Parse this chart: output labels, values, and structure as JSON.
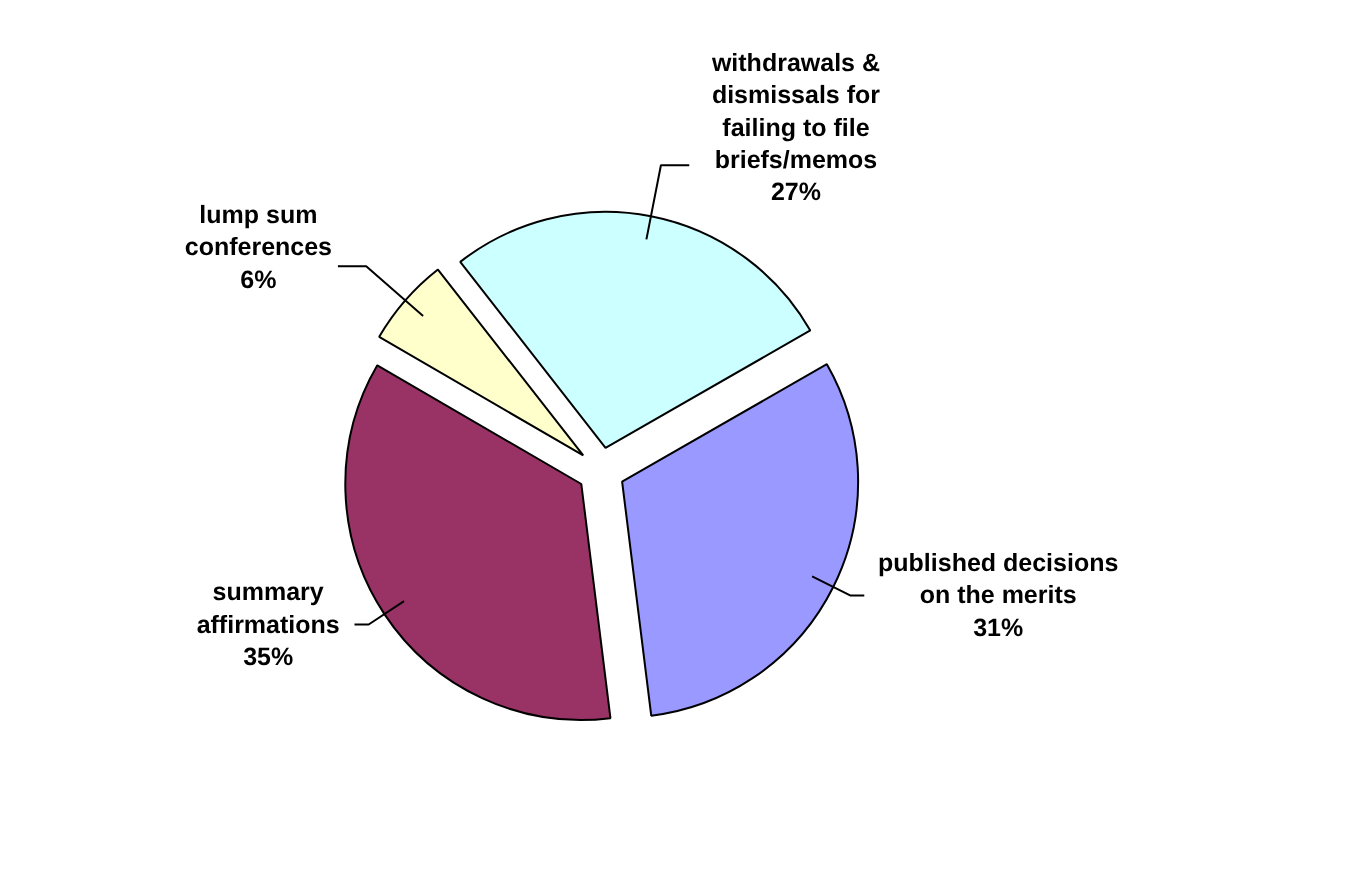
{
  "chart_data": {
    "type": "pie",
    "categories": [
      "withdrawals & dismissals for failing to file briefs/memos",
      "published decisions on the merits",
      "summary affirmations",
      "lump sum conferences"
    ],
    "values": [
      27,
      31,
      35,
      6
    ],
    "value_labels": [
      "27%",
      "31%",
      "35%",
      "6%"
    ],
    "colors": [
      "#ccffff",
      "#9999ff",
      "#993366",
      "#ffffcc"
    ]
  }
}
